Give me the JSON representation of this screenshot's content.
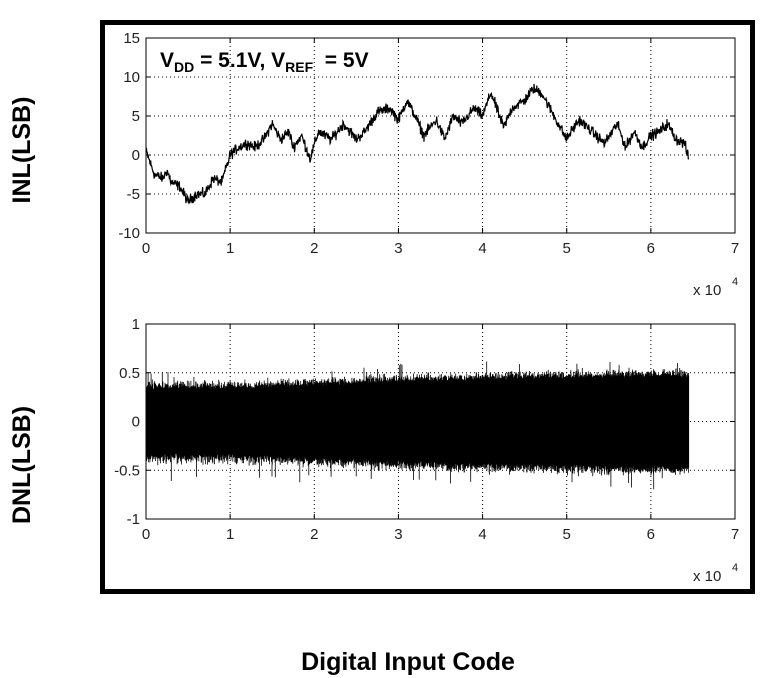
{
  "chart_data": [
    {
      "type": "line",
      "name": "INL",
      "ylabel": "INL(LSB)",
      "xlabel": "Digital Input Code",
      "x_multiplier_label": "x 10",
      "x_multiplier_exp": "4",
      "xlim": [
        0,
        7
      ],
      "ylim": [
        -10,
        15
      ],
      "xticks": [
        0,
        1,
        2,
        3,
        4,
        5,
        6,
        7
      ],
      "yticks": [
        -10,
        -5,
        0,
        5,
        10,
        15
      ],
      "grid": true,
      "annotation": {
        "v1": "V",
        "s1": "DD",
        "mid": " = 5.1V, V",
        "s2": "REF",
        "end": "  = 5V"
      },
      "series": [
        {
          "name": "INL",
          "x": [
            0,
            0.05,
            0.1,
            0.2,
            0.25,
            0.3,
            0.4,
            0.5,
            0.6,
            0.7,
            0.8,
            0.9,
            1.0,
            1.1,
            1.2,
            1.3,
            1.4,
            1.5,
            1.6,
            1.7,
            1.75,
            1.85,
            1.95,
            2.05,
            2.2,
            2.35,
            2.5,
            2.6,
            2.75,
            2.9,
            3.0,
            3.1,
            3.2,
            3.3,
            3.45,
            3.55,
            3.65,
            3.75,
            3.9,
            4.0,
            4.1,
            4.25,
            4.35,
            4.5,
            4.6,
            4.7,
            4.8,
            4.9,
            5.0,
            5.05,
            5.15,
            5.3,
            5.45,
            5.6,
            5.7,
            5.8,
            5.9,
            6.0,
            6.1,
            6.2,
            6.3,
            6.4,
            6.45
          ],
          "y": [
            0.5,
            -1,
            -2.5,
            -3,
            -2,
            -3.5,
            -4,
            -6,
            -5,
            -5,
            -3,
            -3.5,
            0,
            1,
            1.5,
            1,
            2,
            4,
            2,
            3,
            1,
            2.5,
            -0.5,
            3,
            2,
            4,
            2,
            3,
            5.5,
            6,
            4.5,
            7,
            5,
            2.5,
            4.5,
            2,
            5,
            4,
            6,
            5,
            8,
            3.5,
            6,
            7,
            8.5,
            8,
            6,
            4,
            2,
            3,
            4.5,
            3,
            1.5,
            4,
            1,
            3,
            1,
            2.5,
            3,
            4,
            2,
            1.5,
            -0.5
          ]
        }
      ]
    },
    {
      "type": "line",
      "name": "DNL",
      "ylabel": "DNL(LSB)",
      "x_multiplier_label": "x 10",
      "x_multiplier_exp": "4",
      "xlim": [
        0,
        7
      ],
      "ylim": [
        -1,
        1
      ],
      "xticks": [
        0,
        1,
        2,
        3,
        4,
        5,
        6,
        7
      ],
      "yticks": [
        -1,
        -0.5,
        0,
        0.5,
        1
      ],
      "grid": true,
      "series": [
        {
          "name": "DNL",
          "x_end": 6.45,
          "envelope_x": [
            0,
            1,
            2,
            3,
            4,
            5,
            6,
            6.45
          ],
          "envelope_y": [
            0.33,
            0.33,
            0.36,
            0.4,
            0.42,
            0.44,
            0.45,
            0.45
          ],
          "peak_max": 0.62,
          "peak_min": -0.75
        }
      ]
    }
  ]
}
